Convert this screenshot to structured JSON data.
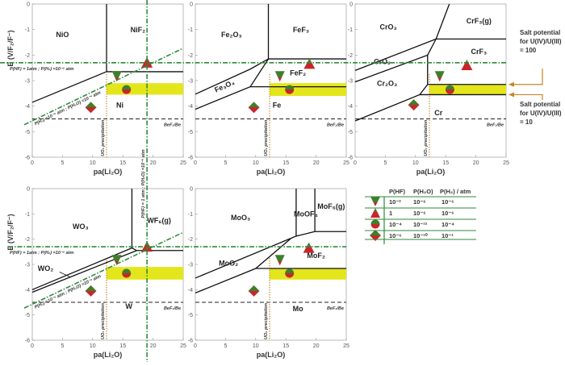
{
  "colors": {
    "green": "#2e8b3a",
    "red": "#c8262a",
    "yellow": "#e4e61c",
    "orange": "#c9852a",
    "boundary": "#111111"
  },
  "common": {
    "x_label": "pa(Li₂O)",
    "y_label": "E (V/F₂/F⁻)",
    "x_ticks": [
      0,
      5,
      10,
      15,
      20,
      25
    ],
    "y_ticks": [
      0,
      -1,
      -2,
      -3,
      -4,
      -5,
      -6
    ],
    "xlim": [
      0,
      25
    ],
    "ylim": [
      -6,
      0
    ],
    "uo2_label": "UO₂ precipitation",
    "uo2_pa": 12.3,
    "bef2_label": "BeF₂/Be",
    "bef2_E": -4.5,
    "hf_line_E": -2.3,
    "hf_line_label": "P(HF) = 1atm ; P(H₂) =10⁻⁶ atm",
    "h2o_vertical_pa": 19,
    "h2o_vertical_label": "P(HF) = 1 atm ; P(H₂O) =10⁻⁶ atm",
    "diagonal_label": "P(H₂) =10⁻⁶ atm ; P(H₂O) =10⁻⁶ atm",
    "diagonal_line": [
      [
        0,
        -4.6
      ],
      [
        25,
        -1.73
      ]
    ]
  },
  "panels": [
    {
      "metal": "Ni",
      "regions": [
        "NiO",
        "NiF₂",
        "Ni"
      ],
      "boundaries": [
        [
          [
            12.3,
            0
          ],
          [
            12.3,
            -2.65
          ],
          [
            25,
            -2.65
          ]
        ],
        [
          [
            0,
            -3.85
          ],
          [
            12.3,
            -2.65
          ]
        ]
      ],
      "band": [
        12.3,
        25,
        -3.1,
        -3.55
      ],
      "markers": {
        "down": [
          14,
          -2.85
        ],
        "up": [
          19,
          -2.3
        ],
        "circle": [
          15.6,
          -3.35
        ],
        "diamond": [
          9.7,
          -4.05
        ]
      }
    },
    {
      "metal": "Fe",
      "regions": [
        "Fe₂O₃",
        "FeF₃",
        "Fe₃O₄",
        "FeF₂",
        "Fe"
      ],
      "boundaries": [
        [
          [
            12.1,
            0
          ],
          [
            12.1,
            -2.15
          ],
          [
            25,
            -2.15
          ]
        ],
        [
          [
            0,
            -3.53
          ],
          [
            9.1,
            -2.55
          ],
          [
            12.1,
            -2.15
          ]
        ],
        [
          [
            0,
            -4.12
          ],
          [
            9.1,
            -3.24
          ],
          [
            12.1,
            -2.15
          ]
        ],
        [
          [
            9.1,
            -3.24
          ],
          [
            25,
            -3.24
          ]
        ]
      ],
      "band": [
        12.3,
        25,
        -3.1,
        -3.6
      ],
      "markers": {
        "down": [
          14,
          -2.85
        ],
        "up": [
          18.9,
          -2.35
        ],
        "circle": [
          15.6,
          -3.35
        ],
        "diamond": [
          9.7,
          -4.05
        ]
      }
    },
    {
      "metal": "Cr",
      "regions": [
        "CrO₃",
        "CrF₃(g)",
        "CrF₃",
        "CrO₂",
        "Cr₂O₃",
        "Cr"
      ],
      "boundaries": [
        [
          [
            15.6,
            0
          ],
          [
            13.4,
            -1.37
          ],
          [
            25,
            -1.37
          ]
        ],
        [
          [
            13.4,
            -1.37
          ],
          [
            12,
            -2.0
          ],
          [
            12,
            -3.15
          ],
          [
            10.7,
            -3.55
          ]
        ],
        [
          [
            0,
            -2.6
          ],
          [
            13.4,
            -1.37
          ]
        ],
        [
          [
            0,
            -3.05
          ],
          [
            12,
            -2.0
          ]
        ],
        [
          [
            0,
            -4.58
          ],
          [
            10.7,
            -3.55
          ],
          [
            25,
            -3.55
          ]
        ],
        [
          [
            12,
            -3.15
          ],
          [
            25,
            -3.15
          ]
        ]
      ],
      "band": [
        12.3,
        25,
        -3.15,
        -3.55
      ],
      "markers": {
        "down": [
          14,
          -2.85
        ],
        "up": [
          18.5,
          -2.4
        ],
        "circle": [
          15.7,
          -3.35
        ],
        "diamond": [
          9.7,
          -3.95
        ]
      },
      "salt_potentials": [
        {
          "label": [
            "Salt potential",
            "for U(IV)/U(III)",
            "= 100"
          ],
          "E": -3.15
        },
        {
          "label": [
            "Salt potential",
            "for U(IV)/U(III)",
            "= 10"
          ],
          "E": -3.55
        }
      ]
    },
    {
      "metal": "W",
      "regions": [
        "WO₃",
        "WF₆(g)",
        "WO₂",
        "W"
      ],
      "boundaries": [
        [
          [
            16.5,
            0
          ],
          [
            16.5,
            -2.35
          ],
          [
            17.3,
            -2.45
          ],
          [
            25,
            -2.45
          ]
        ],
        [
          [
            0,
            -4.0
          ],
          [
            16.5,
            -2.35
          ]
        ],
        [
          [
            0,
            -4.1
          ],
          [
            17.3,
            -2.45
          ]
        ]
      ],
      "band": [
        12.3,
        25,
        -3.1,
        -3.6
      ],
      "markers": {
        "down": [
          14,
          -2.85
        ],
        "up": [
          19,
          -2.3
        ],
        "circle": [
          15.6,
          -3.35
        ],
        "diamond": [
          9.7,
          -4.05
        ]
      }
    },
    {
      "metal": "Mo",
      "regions": [
        "MoO₃",
        "MoOF₄",
        "MoF₆(g)",
        "MoO₂",
        "MoF₂",
        "Mo"
      ],
      "boundaries": [
        [
          [
            16.7,
            0
          ],
          [
            16.7,
            -1.88
          ],
          [
            19.8,
            -1.7
          ],
          [
            25,
            -1.7
          ]
        ],
        [
          [
            19.8,
            0
          ],
          [
            19.8,
            -1.7
          ]
        ],
        [
          [
            0,
            -3.54
          ],
          [
            16.7,
            -1.88
          ]
        ],
        [
          [
            0,
            -4.13
          ],
          [
            10,
            -3.16
          ],
          [
            15.8,
            -1.98
          ]
        ],
        [
          [
            10,
            -3.16
          ],
          [
            25,
            -3.16
          ]
        ]
      ],
      "band": [
        12.3,
        25,
        -3.16,
        -3.6
      ],
      "markers": {
        "down": [
          14,
          -2.85
        ],
        "up": [
          18.8,
          -2.35
        ],
        "circle": [
          15.6,
          -3.35
        ],
        "diamond": [
          9.7,
          -4.05
        ]
      }
    }
  ],
  "legend": {
    "headers": [
      "P(HF)",
      "P(H₂O)",
      "P(H₂) / atm"
    ],
    "rows": [
      {
        "marker": "down-triangle",
        "values": [
          "10⁻²",
          "10⁻⁶",
          "10⁻⁶"
        ]
      },
      {
        "marker": "up-triangle",
        "values": [
          "1",
          "10⁻⁶",
          "10⁻⁶"
        ]
      },
      {
        "marker": "circle",
        "values": [
          "10⁻⁴",
          "10⁻¹²",
          "10⁻⁴"
        ]
      },
      {
        "marker": "diamond",
        "values": [
          "10⁻⁶",
          "10⁻¹⁰",
          "10⁻¹"
        ]
      }
    ]
  }
}
